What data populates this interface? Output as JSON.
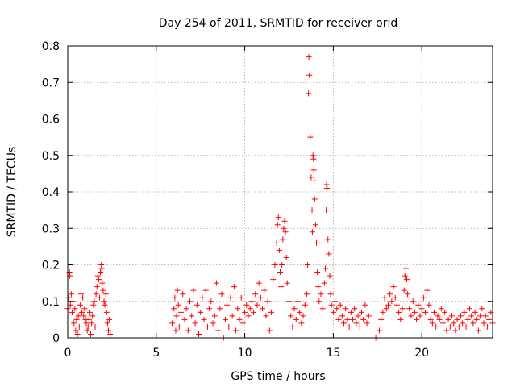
{
  "chart_data": {
    "type": "scatter",
    "title": "Day 254 of 2011, SRMTID for receiver orid",
    "xlabel": "GPS time / hours",
    "ylabel": "SRMTID / TECUs",
    "xlim": [
      0,
      24
    ],
    "ylim": [
      0,
      0.8
    ],
    "xticks": [
      0,
      5,
      10,
      15,
      20
    ],
    "xtick_labels": [
      "0",
      "5",
      "10",
      "15",
      "20"
    ],
    "yticks": [
      0,
      0.1,
      0.2,
      0.3,
      0.4,
      0.5,
      0.6,
      0.7,
      0.8
    ],
    "ytick_labels": [
      "0",
      "0.1",
      "0.2",
      "0.3",
      "0.4",
      "0.5",
      "0.6",
      "0.7",
      "0.8"
    ],
    "grid": true,
    "marker": "+",
    "color": "#ff0000",
    "series": [
      {
        "name": "SRMTID",
        "points": [
          [
            0.0,
            0.08
          ],
          [
            0.05,
            0.11
          ],
          [
            0.1,
            0.18
          ],
          [
            0.12,
            0.17
          ],
          [
            0.15,
            0.09
          ],
          [
            0.2,
            0.12
          ],
          [
            0.25,
            0.07
          ],
          [
            0.3,
            0.1
          ],
          [
            0.35,
            0.04
          ],
          [
            0.4,
            0.08
          ],
          [
            0.45,
            0.02
          ],
          [
            0.5,
            0.05
          ],
          [
            0.55,
            0.01
          ],
          [
            0.6,
            0.06
          ],
          [
            0.65,
            0.03
          ],
          [
            0.7,
            0.09
          ],
          [
            0.75,
            0.12
          ],
          [
            0.8,
            0.07
          ],
          [
            0.85,
            0.11
          ],
          [
            0.9,
            0.06
          ],
          [
            0.95,
            0.08
          ],
          [
            1.0,
            0.05
          ],
          [
            1.05,
            0.04
          ],
          [
            1.1,
            0.02
          ],
          [
            1.15,
            0.03
          ],
          [
            1.2,
            0.05
          ],
          [
            1.25,
            0.07
          ],
          [
            1.3,
            0.01
          ],
          [
            1.35,
            0.04
          ],
          [
            1.4,
            0.06
          ],
          [
            1.45,
            0.09
          ],
          [
            1.5,
            0.1
          ],
          [
            1.55,
            0.03
          ],
          [
            1.6,
            0.12
          ],
          [
            1.65,
            0.14
          ],
          [
            1.7,
            0.17
          ],
          [
            1.75,
            0.16
          ],
          [
            1.8,
            0.11
          ],
          [
            1.85,
            0.18
          ],
          [
            1.9,
            0.2
          ],
          [
            1.92,
            0.19
          ],
          [
            1.95,
            0.15
          ],
          [
            2.0,
            0.13
          ],
          [
            2.05,
            0.1
          ],
          [
            2.1,
            0.09
          ],
          [
            2.15,
            0.12
          ],
          [
            2.2,
            0.07
          ],
          [
            2.25,
            0.04
          ],
          [
            2.3,
            0.02
          ],
          [
            2.35,
            0.05
          ],
          [
            2.4,
            0.01
          ],
          [
            5.9,
            0.04
          ],
          [
            6.0,
            0.08
          ],
          [
            6.05,
            0.11
          ],
          [
            6.1,
            0.02
          ],
          [
            6.15,
            0.06
          ],
          [
            6.2,
            0.13
          ],
          [
            6.25,
            0.09
          ],
          [
            6.3,
            0.03
          ],
          [
            6.4,
            0.07
          ],
          [
            6.5,
            0.12
          ],
          [
            6.6,
            0.05
          ],
          [
            6.7,
            0.08
          ],
          [
            6.8,
            0.02
          ],
          [
            6.9,
            0.1
          ],
          [
            7.0,
            0.06
          ],
          [
            7.1,
            0.13
          ],
          [
            7.2,
            0.04
          ],
          [
            7.3,
            0.09
          ],
          [
            7.4,
            0.01
          ],
          [
            7.5,
            0.07
          ],
          [
            7.6,
            0.11
          ],
          [
            7.7,
            0.05
          ],
          [
            7.8,
            0.13
          ],
          [
            7.9,
            0.03
          ],
          [
            8.0,
            0.08
          ],
          [
            8.1,
            0.1
          ],
          [
            8.2,
            0.04
          ],
          [
            8.3,
            0.06
          ],
          [
            8.4,
            0.15
          ],
          [
            8.5,
            0.02
          ],
          [
            8.6,
            0.08
          ],
          [
            8.7,
            0.12
          ],
          [
            8.8,
            0.0
          ],
          [
            8.9,
            0.05
          ],
          [
            9.0,
            0.09
          ],
          [
            9.1,
            0.03
          ],
          [
            9.2,
            0.11
          ],
          [
            9.3,
            0.06
          ],
          [
            9.4,
            0.14
          ],
          [
            9.5,
            0.02
          ],
          [
            9.6,
            0.08
          ],
          [
            9.7,
            0.05
          ],
          [
            9.8,
            0.11
          ],
          [
            9.9,
            0.04
          ],
          [
            10.0,
            0.07
          ],
          [
            10.1,
            0.09
          ],
          [
            10.2,
            0.06
          ],
          [
            10.3,
            0.08
          ],
          [
            10.4,
            0.1
          ],
          [
            10.5,
            0.07
          ],
          [
            10.6,
            0.12
          ],
          [
            10.7,
            0.09
          ],
          [
            10.8,
            0.15
          ],
          [
            10.9,
            0.11
          ],
          [
            11.0,
            0.08
          ],
          [
            11.1,
            0.13
          ],
          [
            11.2,
            0.06
          ],
          [
            11.3,
            0.1
          ],
          [
            11.4,
            0.02
          ],
          [
            11.5,
            0.07
          ],
          [
            11.6,
            0.16
          ],
          [
            11.7,
            0.2
          ],
          [
            11.8,
            0.26
          ],
          [
            11.85,
            0.31
          ],
          [
            11.9,
            0.33
          ],
          [
            11.95,
            0.24
          ],
          [
            12.0,
            0.18
          ],
          [
            12.05,
            0.14
          ],
          [
            12.1,
            0.2
          ],
          [
            12.15,
            0.27
          ],
          [
            12.2,
            0.3
          ],
          [
            12.25,
            0.32
          ],
          [
            12.3,
            0.29
          ],
          [
            12.35,
            0.22
          ],
          [
            12.4,
            0.15
          ],
          [
            12.5,
            0.1
          ],
          [
            12.6,
            0.06
          ],
          [
            12.7,
            0.03
          ],
          [
            12.8,
            0.08
          ],
          [
            12.9,
            0.05
          ],
          [
            13.0,
            0.1
          ],
          [
            13.1,
            0.07
          ],
          [
            13.2,
            0.04
          ],
          [
            13.3,
            0.06
          ],
          [
            13.4,
            0.09
          ],
          [
            13.5,
            0.12
          ],
          [
            13.55,
            0.2
          ],
          [
            13.6,
            0.67
          ],
          [
            13.62,
            0.77
          ],
          [
            13.65,
            0.72
          ],
          [
            13.7,
            0.55
          ],
          [
            13.75,
            0.44
          ],
          [
            13.8,
            0.35
          ],
          [
            13.82,
            0.29
          ],
          [
            13.85,
            0.5
          ],
          [
            13.88,
            0.49
          ],
          [
            13.9,
            0.46
          ],
          [
            13.92,
            0.43
          ],
          [
            13.95,
            0.38
          ],
          [
            14.0,
            0.31
          ],
          [
            14.05,
            0.26
          ],
          [
            14.1,
            0.18
          ],
          [
            14.15,
            0.14
          ],
          [
            14.2,
            0.1
          ],
          [
            14.3,
            0.12
          ],
          [
            14.4,
            0.08
          ],
          [
            14.5,
            0.15
          ],
          [
            14.55,
            0.19
          ],
          [
            14.6,
            0.35
          ],
          [
            14.62,
            0.42
          ],
          [
            14.65,
            0.41
          ],
          [
            14.7,
            0.27
          ],
          [
            14.75,
            0.23
          ],
          [
            14.8,
            0.17
          ],
          [
            14.85,
            0.12
          ],
          [
            14.9,
            0.09
          ],
          [
            15.0,
            0.07
          ],
          [
            15.1,
            0.1
          ],
          [
            15.2,
            0.08
          ],
          [
            15.3,
            0.05
          ],
          [
            15.4,
            0.09
          ],
          [
            15.5,
            0.06
          ],
          [
            15.6,
            0.04
          ],
          [
            15.7,
            0.08
          ],
          [
            15.8,
            0.05
          ],
          [
            15.9,
            0.03
          ],
          [
            16.0,
            0.07
          ],
          [
            16.1,
            0.05
          ],
          [
            16.2,
            0.08
          ],
          [
            16.3,
            0.04
          ],
          [
            16.4,
            0.06
          ],
          [
            16.5,
            0.03
          ],
          [
            16.6,
            0.07
          ],
          [
            16.7,
            0.05
          ],
          [
            16.8,
            0.09
          ],
          [
            16.9,
            0.04
          ],
          [
            17.0,
            0.06
          ],
          [
            17.4,
            0.0
          ],
          [
            17.6,
            0.02
          ],
          [
            17.7,
            0.05
          ],
          [
            17.8,
            0.07
          ],
          [
            17.9,
            0.11
          ],
          [
            18.0,
            0.08
          ],
          [
            18.1,
            0.09
          ],
          [
            18.2,
            0.12
          ],
          [
            18.3,
            0.1
          ],
          [
            18.4,
            0.14
          ],
          [
            18.5,
            0.11
          ],
          [
            18.6,
            0.09
          ],
          [
            18.7,
            0.07
          ],
          [
            18.8,
            0.05
          ],
          [
            18.9,
            0.08
          ],
          [
            19.0,
            0.13
          ],
          [
            19.05,
            0.17
          ],
          [
            19.1,
            0.19
          ],
          [
            19.15,
            0.16
          ],
          [
            19.2,
            0.12
          ],
          [
            19.3,
            0.08
          ],
          [
            19.4,
            0.06
          ],
          [
            19.5,
            0.1
          ],
          [
            19.6,
            0.07
          ],
          [
            19.7,
            0.05
          ],
          [
            19.8,
            0.09
          ],
          [
            19.9,
            0.06
          ],
          [
            20.0,
            0.08
          ],
          [
            20.1,
            0.11
          ],
          [
            20.2,
            0.07
          ],
          [
            20.3,
            0.13
          ],
          [
            20.4,
            0.09
          ],
          [
            20.5,
            0.05
          ],
          [
            20.6,
            0.04
          ],
          [
            20.7,
            0.07
          ],
          [
            20.8,
            0.03
          ],
          [
            20.9,
            0.06
          ],
          [
            21.0,
            0.05
          ],
          [
            21.1,
            0.08
          ],
          [
            21.2,
            0.04
          ],
          [
            21.3,
            0.07
          ],
          [
            21.4,
            0.02
          ],
          [
            21.5,
            0.05
          ],
          [
            21.6,
            0.03
          ],
          [
            21.7,
            0.06
          ],
          [
            21.8,
            0.04
          ],
          [
            21.9,
            0.02
          ],
          [
            22.0,
            0.05
          ],
          [
            22.1,
            0.03
          ],
          [
            22.2,
            0.06
          ],
          [
            22.3,
            0.04
          ],
          [
            22.4,
            0.07
          ],
          [
            22.5,
            0.03
          ],
          [
            22.6,
            0.05
          ],
          [
            22.7,
            0.08
          ],
          [
            22.8,
            0.06
          ],
          [
            22.9,
            0.04
          ],
          [
            23.0,
            0.07
          ],
          [
            23.1,
            0.05
          ],
          [
            23.2,
            0.02
          ],
          [
            23.3,
            0.06
          ],
          [
            23.4,
            0.08
          ],
          [
            23.5,
            0.04
          ],
          [
            23.6,
            0.06
          ],
          [
            23.7,
            0.03
          ],
          [
            23.8,
            0.05
          ],
          [
            23.9,
            0.07
          ],
          [
            24.0,
            0.04
          ]
        ]
      }
    ]
  }
}
